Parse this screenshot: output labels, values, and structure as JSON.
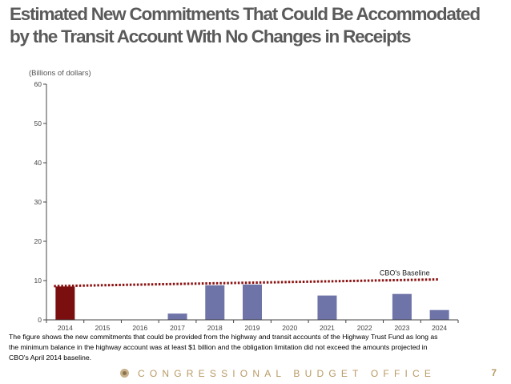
{
  "slide": {
    "title_line1": "Estimated New Commitments That Could Be Accommodated",
    "title_line2": "by the Transit Account With No Changes in Receipts",
    "caption_line1": "The figure shows the new commitments that could be provided from the highway and transit accounts of the Highway Trust Fund as long as",
    "caption_line2": "the minimum balance in the highway account was at least $1 billion and the obligation limitation did not exceed the amounts projected in",
    "caption_line3": "CBO's April 2014 baseline.",
    "footer_org": "CONGRESSIONAL BUDGET OFFICE",
    "page_number": "7"
  },
  "chart_data": {
    "type": "bar",
    "title": "",
    "ylabel": "(Billions of dollars)",
    "xlabel": "",
    "categories": [
      "2014",
      "2015",
      "2016",
      "2017",
      "2018",
      "2019",
      "2020",
      "2021",
      "2022",
      "2023",
      "2024"
    ],
    "values": [
      8.5,
      0,
      0,
      1.6,
      8.8,
      9.0,
      0,
      6.2,
      0,
      6.6,
      2.5
    ],
    "bar_colors": [
      "#7b0e0e",
      "#6f74a8",
      "#6f74a8",
      "#6f74a8",
      "#6f74a8",
      "#6f74a8",
      "#6f74a8",
      "#6f74a8",
      "#6f74a8",
      "#6f74a8",
      "#6f74a8"
    ],
    "ylim": [
      0,
      60
    ],
    "yticks": [
      "0",
      "10",
      "20",
      "30",
      "40",
      "50",
      "60"
    ],
    "baseline": {
      "label": "CBO's Baseline",
      "start": {
        "x": "2014",
        "y": 8.6
      },
      "end": {
        "x": "2024",
        "y": 10.3
      },
      "color": "#8a1010"
    }
  },
  "colors": {
    "title": "#5a5a5a",
    "footer": "#b89a64"
  }
}
